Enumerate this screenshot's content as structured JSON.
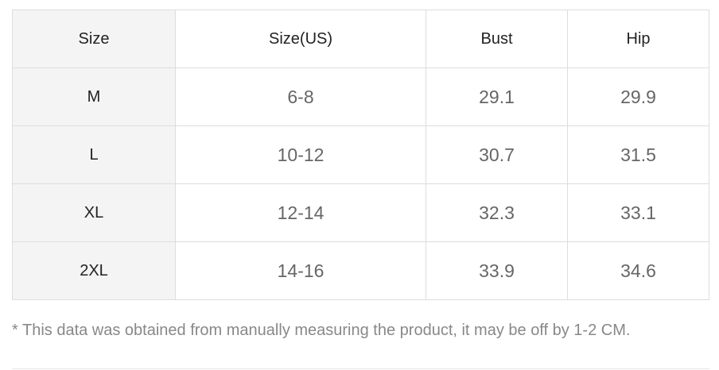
{
  "table": {
    "header": [
      "Size",
      "Size(US)",
      "Bust",
      "Hip"
    ],
    "rows": [
      [
        "M",
        "6-8",
        "29.1",
        "29.9"
      ],
      [
        "L",
        "10-12",
        "30.7",
        "31.5"
      ],
      [
        "XL",
        "12-14",
        "32.3",
        "33.1"
      ],
      [
        "2XL",
        "14-16",
        "33.9",
        "34.6"
      ]
    ]
  },
  "note": "* This data was obtained from manually measuring the product, it may be off by 1-2 CM."
}
